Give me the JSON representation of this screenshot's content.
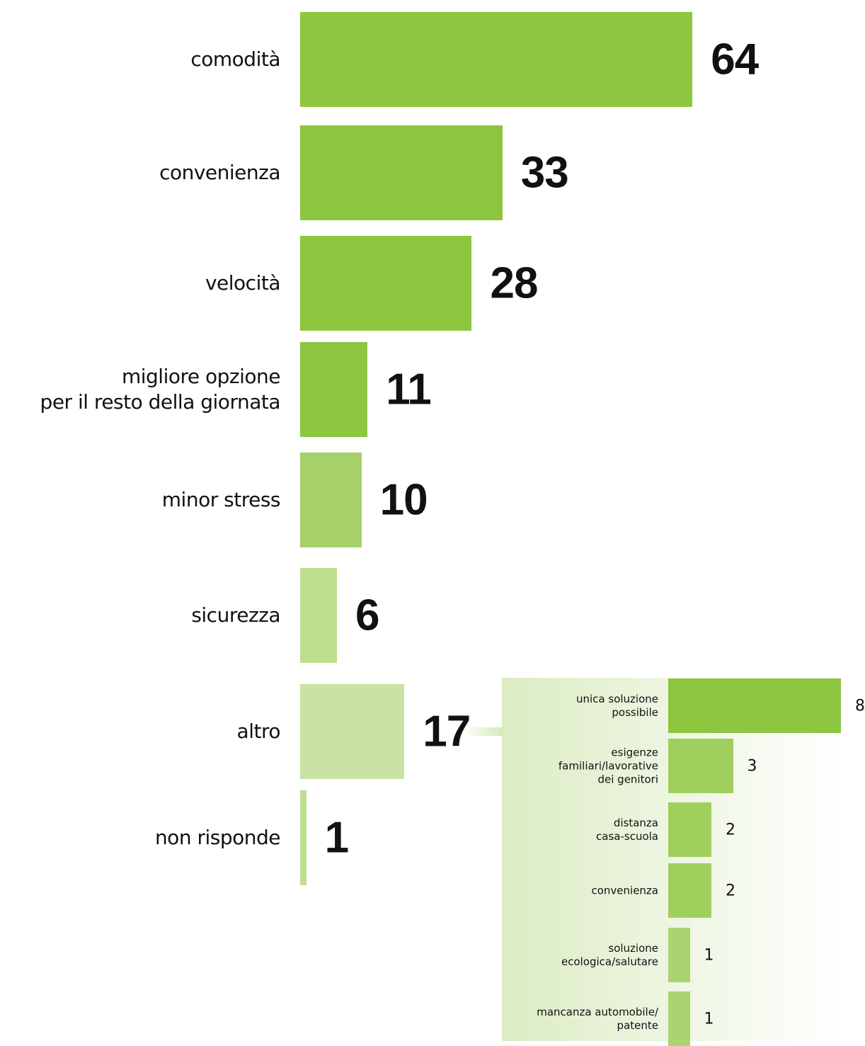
{
  "chart_data": [
    {
      "type": "barh",
      "categories": [
        "comodità",
        "convenienza",
        "velocità",
        "migliore opzione\nper il resto della giornata",
        "minor stress",
        "sicurezza",
        "altro",
        "non risponde"
      ],
      "values": [
        64,
        33,
        28,
        11,
        10,
        6,
        17,
        1
      ],
      "colors": [
        "#8dc63f",
        "#8dc63f",
        "#8dc63f",
        "#8dc63f",
        "#a6d06a",
        "#bedd8e",
        "#c8e3a3",
        "#bedd8e"
      ]
    },
    {
      "type": "barh",
      "categories": [
        "unica soluzione\npossibile",
        "esigenze\nfamiliari/lavorative\ndei genitori",
        "distanza\ncasa-scuola",
        "convenienza",
        "soluzione\necologica/salutare",
        "mancanza automobile/\npatente"
      ],
      "values": [
        8,
        3,
        2,
        2,
        1,
        1
      ],
      "colors": [
        "#8dc63f",
        "#a0cf5e",
        "#a0cf5e",
        "#a0cf5e",
        "#aad371",
        "#aad371"
      ]
    }
  ]
}
